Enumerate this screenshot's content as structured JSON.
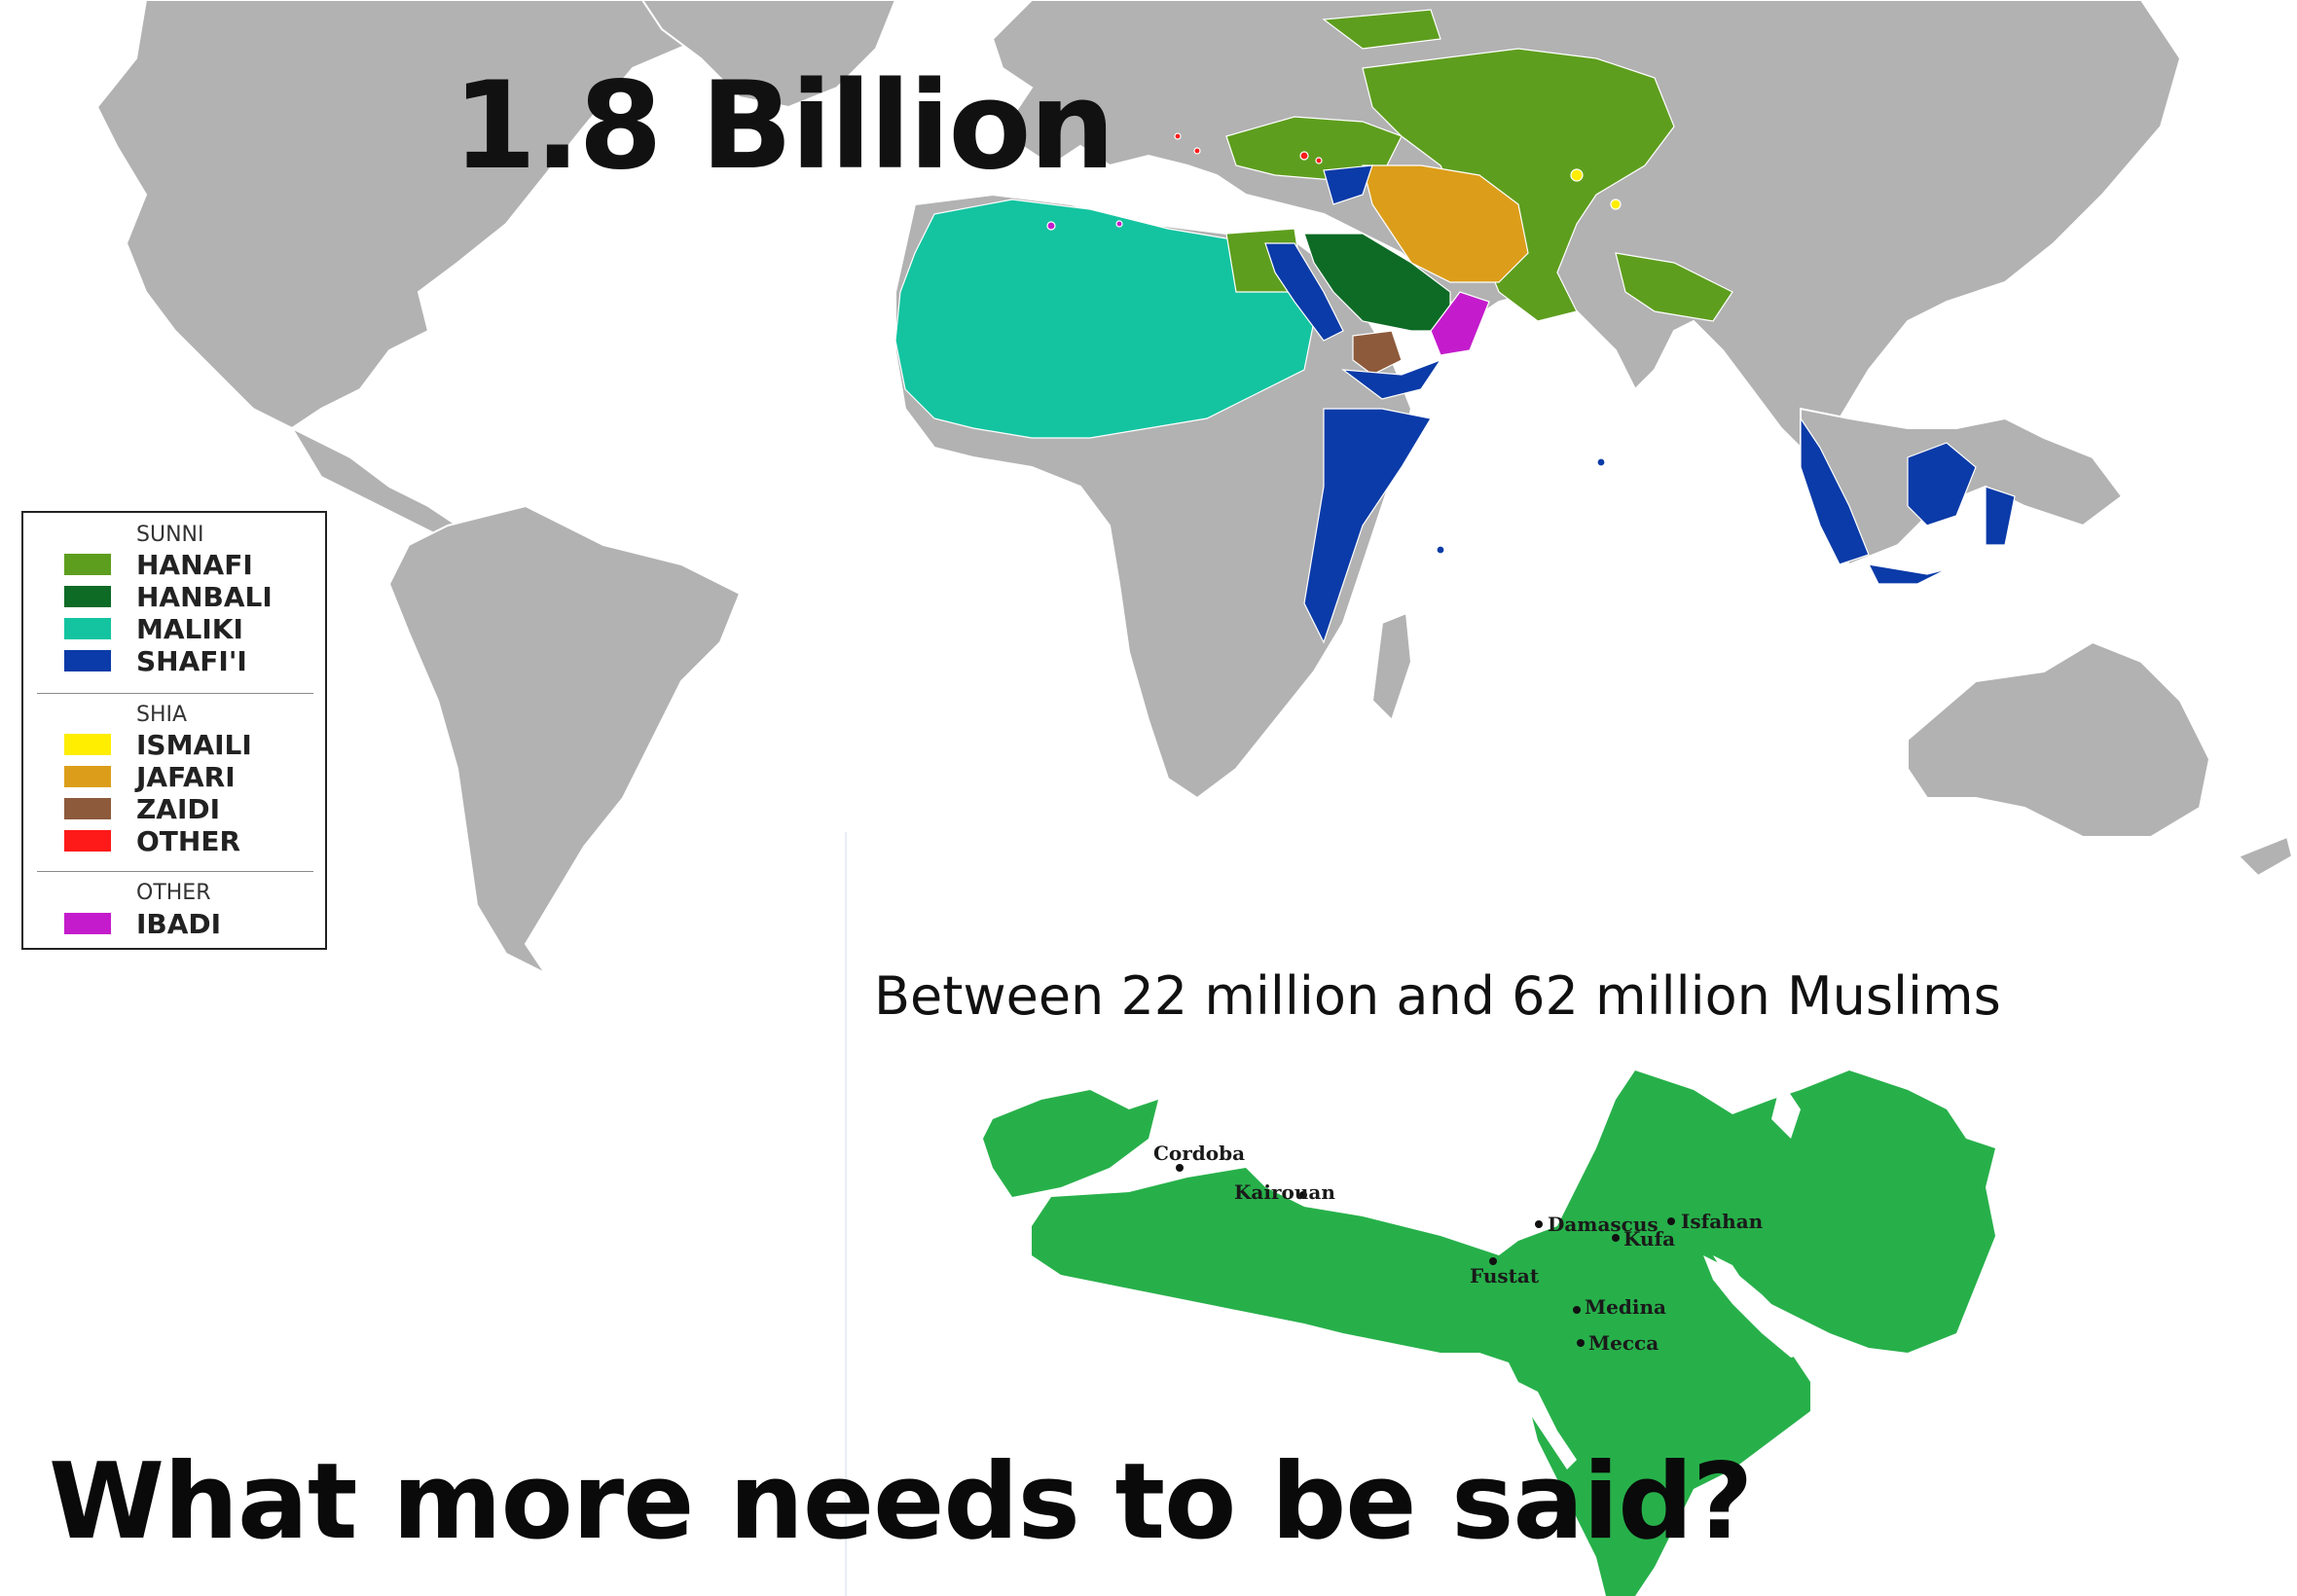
{
  "headline": "1.8 Billion",
  "legend": {
    "sections": [
      {
        "heading": "SUNNI",
        "items": [
          {
            "label": "HANAFI",
            "color": "#5e9e1e"
          },
          {
            "label": "HANBALI",
            "color": "#0e6b26"
          },
          {
            "label": "MALIKI",
            "color": "#14c4a0"
          },
          {
            "label": "SHAFI'I",
            "color": "#0b3ba8"
          }
        ]
      },
      {
        "heading": "SHIA",
        "items": [
          {
            "label": "ISMAILI",
            "color": "#ffee00"
          },
          {
            "label": "JAFARI",
            "color": "#dc9e1a"
          },
          {
            "label": "ZAIDI",
            "color": "#8d5a3c"
          },
          {
            "label": "OTHER",
            "color": "#ff1a1a"
          }
        ]
      },
      {
        "heading": "OTHER",
        "items": [
          {
            "label": "IBADI",
            "color": "#c41ccc"
          }
        ]
      }
    ]
  },
  "caliphate_caption": "Between 22 million and 62 million Muslims",
  "caliphate_cities": [
    "Cordoba",
    "Kairouan",
    "Damascus",
    "Isfahan",
    "Kufa",
    "Fustat",
    "Medina",
    "Mecca"
  ],
  "bottom_text": "What more needs to be said?",
  "colors": {
    "land": "#b2b2b2",
    "ocean": "#ffffff",
    "caliphate_green": "#27b04a",
    "text": "#111111"
  }
}
